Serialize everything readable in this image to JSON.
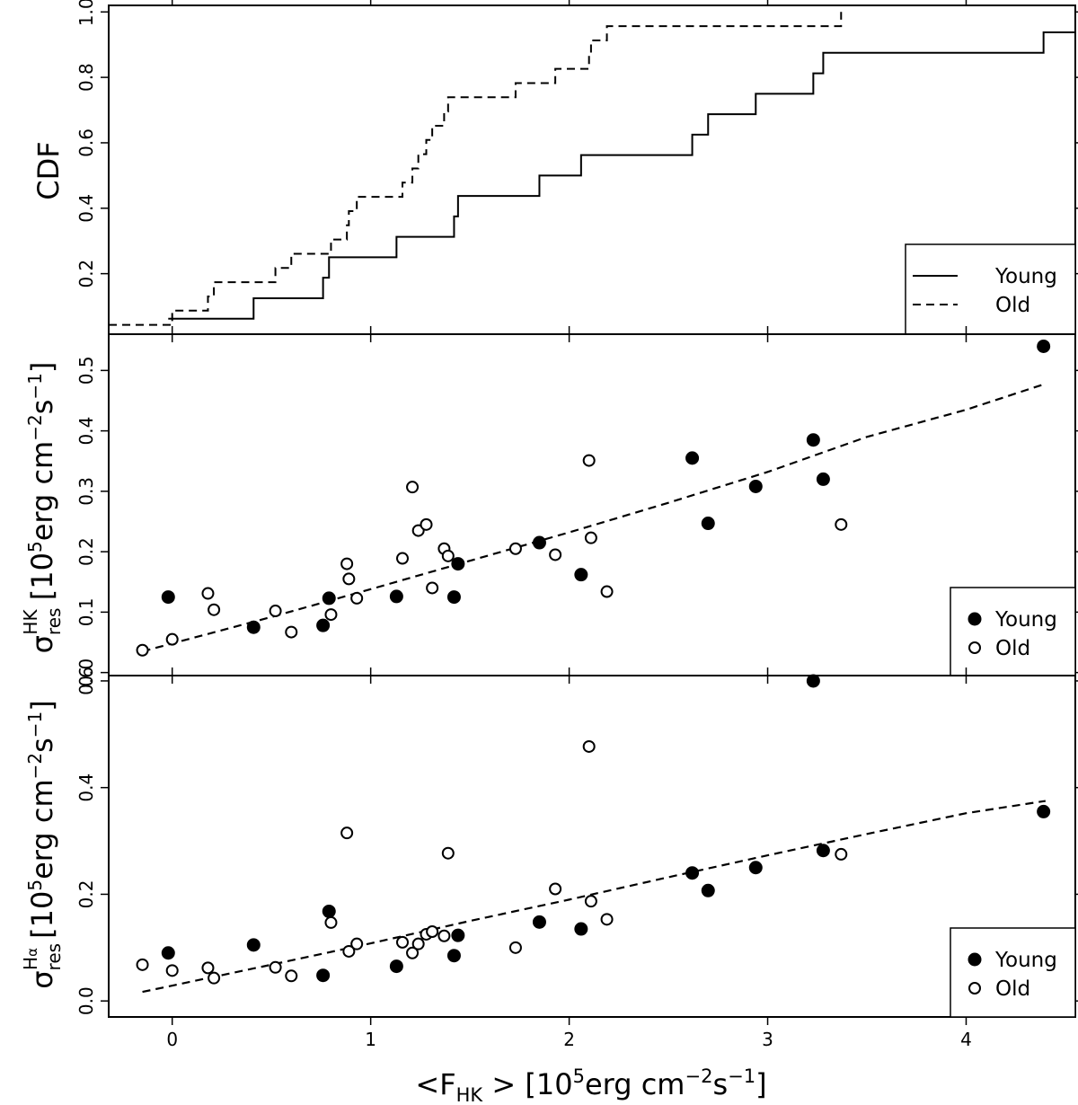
{
  "chart_data": [
    {
      "type": "line",
      "panel": "cdf",
      "ylabel": "CDF",
      "xlim": [
        -0.32,
        4.55
      ],
      "ylim": [
        0.015,
        1.02
      ],
      "yticks": [
        "0.2",
        "0.4",
        "0.6",
        "0.8",
        "1.0"
      ],
      "legend_position": "bottom-right",
      "series": [
        {
          "name": "Young",
          "style": "solid",
          "steps": [
            [
              -0.02,
              0.0625
            ],
            [
              0.41,
              0.125
            ],
            [
              0.76,
              0.1875
            ],
            [
              0.79,
              0.25
            ],
            [
              1.13,
              0.3125
            ],
            [
              1.42,
              0.375
            ],
            [
              1.44,
              0.4375
            ],
            [
              1.85,
              0.5
            ],
            [
              2.06,
              0.5625
            ],
            [
              2.62,
              0.625
            ],
            [
              2.7,
              0.6875
            ],
            [
              2.94,
              0.75
            ],
            [
              3.23,
              0.8125
            ],
            [
              3.28,
              0.875
            ],
            [
              4.39,
              0.9375
            ]
          ],
          "x_end": 4.55
        },
        {
          "name": "Old",
          "style": "dashed",
          "steps": [
            [
              -0.15,
              0.0435
            ],
            [
              0.0,
              0.087
            ],
            [
              0.18,
              0.1304
            ],
            [
              0.21,
              0.1739
            ],
            [
              0.52,
              0.2174
            ],
            [
              0.6,
              0.2609
            ],
            [
              0.8,
              0.3043
            ],
            [
              0.88,
              0.3478
            ],
            [
              0.89,
              0.3913
            ],
            [
              0.93,
              0.4348
            ],
            [
              1.16,
              0.4783
            ],
            [
              1.21,
              0.5217
            ],
            [
              1.24,
              0.5652
            ],
            [
              1.28,
              0.6087
            ],
            [
              1.31,
              0.6522
            ],
            [
              1.37,
              0.6957
            ],
            [
              1.39,
              0.7391
            ],
            [
              1.73,
              0.7826
            ],
            [
              1.93,
              0.8261
            ],
            [
              2.1,
              0.8696
            ],
            [
              2.11,
              0.913
            ],
            [
              2.19,
              0.9565
            ],
            [
              3.37,
              1.0
            ]
          ],
          "x_start": -0.32
        }
      ],
      "legend": [
        "Young",
        "Old"
      ]
    },
    {
      "type": "scatter",
      "panel": "hk",
      "ylabel": "σ_res^HK [10^5 erg cm^-2 s^-1]",
      "xlim": [
        -0.32,
        4.55
      ],
      "ylim": [
        -0.005,
        0.56
      ],
      "yticks": [
        "0.0",
        "0.1",
        "0.2",
        "0.3",
        "0.4",
        "0.5"
      ],
      "legend_position": "bottom-right",
      "series": [
        {
          "name": "Young",
          "marker": "filled-circle",
          "points": [
            [
              -0.02,
              0.125
            ],
            [
              0.41,
              0.075
            ],
            [
              0.76,
              0.078
            ],
            [
              0.79,
              0.123
            ],
            [
              1.13,
              0.126
            ],
            [
              1.42,
              0.125
            ],
            [
              1.44,
              0.18
            ],
            [
              1.85,
              0.215
            ],
            [
              2.06,
              0.162
            ],
            [
              2.62,
              0.355
            ],
            [
              2.7,
              0.247
            ],
            [
              2.94,
              0.308
            ],
            [
              3.23,
              0.385
            ],
            [
              3.28,
              0.32
            ],
            [
              4.39,
              0.54
            ]
          ]
        },
        {
          "name": "Old",
          "marker": "open-circle",
          "points": [
            [
              -0.15,
              0.037
            ],
            [
              0.0,
              0.055
            ],
            [
              0.18,
              0.131
            ],
            [
              0.21,
              0.104
            ],
            [
              0.52,
              0.102
            ],
            [
              0.6,
              0.067
            ],
            [
              0.8,
              0.096
            ],
            [
              0.88,
              0.18
            ],
            [
              0.89,
              0.155
            ],
            [
              0.93,
              0.123
            ],
            [
              1.16,
              0.189
            ],
            [
              1.21,
              0.307
            ],
            [
              1.24,
              0.235
            ],
            [
              1.28,
              0.245
            ],
            [
              1.31,
              0.14
            ],
            [
              1.37,
              0.205
            ],
            [
              1.39,
              0.193
            ],
            [
              1.73,
              0.205
            ],
            [
              1.93,
              0.195
            ],
            [
              2.1,
              0.351
            ],
            [
              2.11,
              0.223
            ],
            [
              2.19,
              0.134
            ],
            [
              3.37,
              0.245
            ]
          ]
        }
      ],
      "fit_line": {
        "style": "dashed",
        "points": [
          [
            -0.15,
            0.035
          ],
          [
            0.5,
            0.092
          ],
          [
            1.0,
            0.138
          ],
          [
            1.5,
            0.185
          ],
          [
            2.0,
            0.232
          ],
          [
            2.5,
            0.281
          ],
          [
            3.0,
            0.332
          ],
          [
            3.5,
            0.39
          ],
          [
            4.0,
            0.435
          ],
          [
            4.4,
            0.478
          ]
        ]
      },
      "legend": [
        "Young",
        "Old"
      ]
    },
    {
      "type": "scatter",
      "panel": "halpha",
      "ylabel": "σ_res^Hα [10^5 erg cm^-2 s^-1]",
      "xlabel": "<F_HK > [10^5 erg cm^-2 s^-1]",
      "xlim": [
        -0.32,
        4.55
      ],
      "xticks": [
        "0",
        "1",
        "2",
        "3",
        "4"
      ],
      "ylim": [
        -0.03,
        0.61
      ],
      "yticks": [
        "0.0",
        "0.2",
        "0.4",
        "0.6"
      ],
      "legend_position": "bottom-right",
      "series": [
        {
          "name": "Young",
          "marker": "filled-circle",
          "points": [
            [
              -0.02,
              0.09
            ],
            [
              0.41,
              0.105
            ],
            [
              0.76,
              0.048
            ],
            [
              0.79,
              0.168
            ],
            [
              1.13,
              0.065
            ],
            [
              1.42,
              0.085
            ],
            [
              1.44,
              0.123
            ],
            [
              1.85,
              0.148
            ],
            [
              2.06,
              0.135
            ],
            [
              2.62,
              0.24
            ],
            [
              2.7,
              0.207
            ],
            [
              2.94,
              0.25
            ],
            [
              3.23,
              0.6
            ],
            [
              3.28,
              0.282
            ],
            [
              4.39,
              0.355
            ]
          ]
        },
        {
          "name": "Old",
          "marker": "open-circle",
          "points": [
            [
              -0.15,
              0.068
            ],
            [
              0.0,
              0.057
            ],
            [
              0.18,
              0.062
            ],
            [
              0.21,
              0.043
            ],
            [
              0.52,
              0.063
            ],
            [
              0.6,
              0.047
            ],
            [
              0.8,
              0.147
            ],
            [
              0.88,
              0.315
            ],
            [
              0.89,
              0.093
            ],
            [
              0.93,
              0.107
            ],
            [
              1.16,
              0.11
            ],
            [
              1.21,
              0.09
            ],
            [
              1.24,
              0.107
            ],
            [
              1.28,
              0.125
            ],
            [
              1.31,
              0.13
            ],
            [
              1.37,
              0.122
            ],
            [
              1.39,
              0.277
            ],
            [
              1.73,
              0.1
            ],
            [
              1.93,
              0.21
            ],
            [
              2.1,
              0.477
            ],
            [
              2.11,
              0.187
            ],
            [
              2.19,
              0.153
            ],
            [
              3.37,
              0.275
            ]
          ]
        }
      ],
      "fit_line": {
        "style": "dashed",
        "points": [
          [
            -0.15,
            0.017
          ],
          [
            0.5,
            0.068
          ],
          [
            1.0,
            0.108
          ],
          [
            1.5,
            0.15
          ],
          [
            2.0,
            0.19
          ],
          [
            2.5,
            0.232
          ],
          [
            3.0,
            0.273
          ],
          [
            3.5,
            0.313
          ],
          [
            4.0,
            0.352
          ],
          [
            4.4,
            0.375
          ]
        ]
      },
      "legend": [
        "Young",
        "Old"
      ]
    }
  ],
  "axis_text": {
    "cdf_ylabel": "CDF",
    "sigma": "σ",
    "res": "res",
    "hk_sup": "HK",
    "ha_sup_H": "H",
    "ha_sup_alpha": "α",
    "unit_open": " [10",
    "unit_five": "5",
    "unit_erg": "erg cm",
    "unit_m2": "−2",
    "unit_s": "s",
    "unit_m1": "−1",
    "unit_close": "]",
    "x_lt": "<F",
    "x_sub": "HK",
    "x_gt": " > [10",
    "x_five": "5",
    "x_erg": "erg cm",
    "x_m2": "−2",
    "x_s": "s",
    "x_m1": "−1",
    "x_close": "]"
  }
}
